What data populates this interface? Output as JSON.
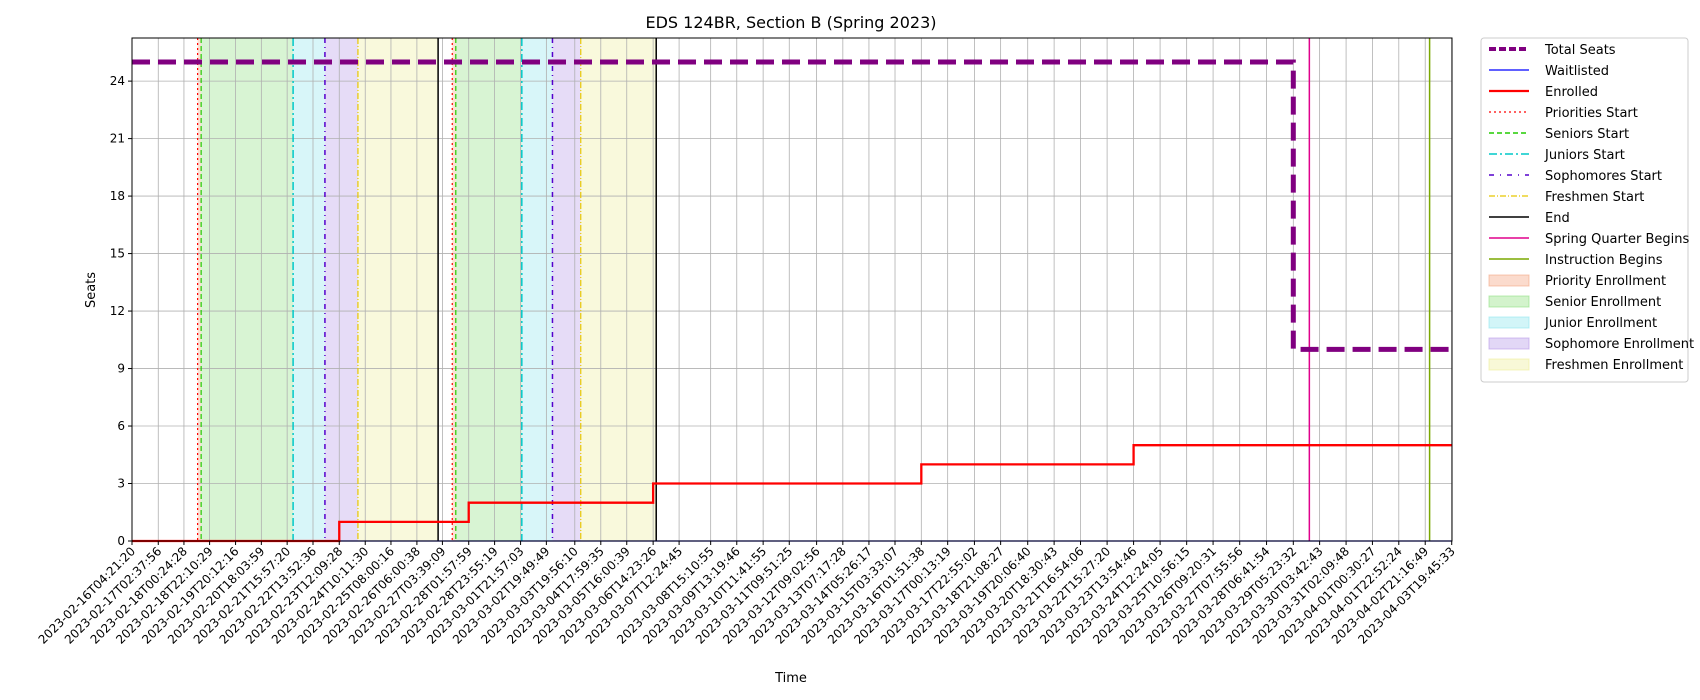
{
  "chart_data": {
    "type": "line",
    "title": "EDS 124BR, Section B (Spring 2023)",
    "xlabel": "Time",
    "ylabel": "Seats",
    "ylim": [
      0,
      26.25
    ],
    "yticks": [
      0,
      3,
      6,
      9,
      12,
      15,
      18,
      21,
      24
    ],
    "grid": true,
    "legend_position": "outside-right",
    "x_ticks": [
      "2023-02-16T04:21:20",
      "2023-02-17T02:37:56",
      "2023-02-18T00:24:28",
      "2023-02-18T22:10:29",
      "2023-02-19T20:12:16",
      "2023-02-20T18:03:59",
      "2023-02-21T15:57:20",
      "2023-02-22T13:52:36",
      "2023-02-23T12:09:28",
      "2023-02-24T10:11:30",
      "2023-02-25T08:00:16",
      "2023-02-26T06:00:38",
      "2023-02-27T03:39:09",
      "2023-02-28T01:57:59",
      "2023-02-28T23:55:19",
      "2023-03-01T21:57:03",
      "2023-03-02T19:49:49",
      "2023-03-03T19:56:10",
      "2023-03-04T17:59:35",
      "2023-03-05T16:00:39",
      "2023-03-06T14:23:26",
      "2023-03-07T12:24:45",
      "2023-03-08T15:10:55",
      "2023-03-09T13:19:46",
      "2023-03-10T11:41:55",
      "2023-03-11T09:51:25",
      "2023-03-12T09:02:56",
      "2023-03-13T07:17:28",
      "2023-03-14T05:26:17",
      "2023-03-15T03:33:07",
      "2023-03-16T01:51:38",
      "2023-03-17T00:13:19",
      "2023-03-17T22:55:02",
      "2023-03-18T21:08:27",
      "2023-03-19T20:06:40",
      "2023-03-20T18:30:43",
      "2023-03-21T16:54:06",
      "2023-03-22T15:27:20",
      "2023-03-23T13:54:46",
      "2023-03-24T12:24:05",
      "2023-03-25T10:56:15",
      "2023-03-26T09:20:31",
      "2023-03-27T07:55:56",
      "2023-03-28T06:41:54",
      "2023-03-29T05:23:32",
      "2023-03-30T03:42:43",
      "2023-03-31T02:09:48",
      "2023-04-01T00:30:27",
      "2023-04-01T22:52:24",
      "2023-04-02T21:16:49",
      "2023-04-03T19:45:33"
    ],
    "x_range": [
      "2023-02-16T04:21:20",
      "2023-04-03T20:00:00"
    ],
    "series": [
      {
        "name": "Total Seats",
        "color": "#800080",
        "style": "dashed-thick",
        "points": [
          [
            "2023-02-16T04:21:20",
            25
          ],
          [
            "2023-03-29T05:23:32",
            25
          ],
          [
            "2023-03-29T05:23:32",
            10
          ],
          [
            "2023-04-03T20:00:00",
            10
          ]
        ]
      },
      {
        "name": "Waitlisted",
        "color": "#0000ff",
        "style": "solid",
        "points": [
          [
            "2023-02-16T04:21:20",
            0
          ],
          [
            "2023-04-03T20:00:00",
            0
          ]
        ]
      },
      {
        "name": "Enrolled",
        "color": "#ff0000",
        "style": "solid-step",
        "points": [
          [
            "2023-02-16T04:21:20",
            0
          ],
          [
            "2023-02-23T12:09:28",
            1
          ],
          [
            "2023-02-28T01:57:59",
            2
          ],
          [
            "2023-03-06T14:23:26",
            3
          ],
          [
            "2023-03-16T01:51:38",
            4
          ],
          [
            "2023-03-23T13:54:46",
            5
          ],
          [
            "2023-04-03T20:00:00",
            5
          ]
        ]
      }
    ],
    "shaded_regions": [
      {
        "name": "Priority Enrollment",
        "color": "#f4a582",
        "ranges": [
          [
            "2023-02-18T12:00:00",
            "2023-02-18T15:00:00"
          ],
          [
            "2023-02-27T12:00:00",
            "2023-02-27T15:00:00"
          ]
        ]
      },
      {
        "name": "Senior Enrollment",
        "color": "#90e080",
        "ranges": [
          [
            "2023-02-18T15:00:00",
            "2023-02-21T21:00:00"
          ],
          [
            "2023-02-27T15:00:00",
            "2023-03-01T23:00:00"
          ]
        ]
      },
      {
        "name": "Junior Enrollment",
        "color": "#8ee6ee",
        "ranges": [
          [
            "2023-02-21T21:00:00",
            "2023-02-23T00:00:00"
          ],
          [
            "2023-03-01T23:00:00",
            "2023-03-03T01:00:00"
          ]
        ]
      },
      {
        "name": "Sophomore Enrollment",
        "color": "#b79ae8",
        "ranges": [
          [
            "2023-02-23T00:00:00",
            "2023-02-24T04:00:00"
          ],
          [
            "2023-03-03T01:00:00",
            "2023-03-04T01:00:00"
          ]
        ]
      },
      {
        "name": "Freshmen Enrollment",
        "color": "#eeee9a",
        "ranges": [
          [
            "2023-02-24T04:00:00",
            "2023-02-27T00:00:00"
          ],
          [
            "2023-03-04T01:00:00",
            "2023-03-06T17:00:00"
          ]
        ]
      }
    ],
    "vertical_lines": [
      {
        "name": "Priorities Start",
        "color": "#ff0000",
        "dash": "2,3",
        "width": 1.2,
        "dates": [
          "2023-02-18T12:00:00",
          "2023-02-27T12:00:00"
        ]
      },
      {
        "name": "Seniors Start",
        "color": "#22cc00",
        "dash": "5,3",
        "width": 1.2,
        "dates": [
          "2023-02-18T15:00:00",
          "2023-02-27T15:00:00"
        ]
      },
      {
        "name": "Juniors Start",
        "color": "#00c8c8",
        "dash": "8,3,2,3",
        "width": 1.5,
        "dates": [
          "2023-02-21T21:00:00",
          "2023-03-01T23:00:00"
        ]
      },
      {
        "name": "Sophomores Start",
        "color": "#5500cc",
        "dash": "5,4,1,4",
        "width": 1.5,
        "dates": [
          "2023-02-23T00:00:00",
          "2023-03-03T01:00:00"
        ]
      },
      {
        "name": "Freshmen Start",
        "color": "#e8c800",
        "dash": "6,2,1,2",
        "width": 1.2,
        "dates": [
          "2023-02-24T04:00:00",
          "2023-03-04T01:00:00"
        ]
      },
      {
        "name": "End",
        "color": "#000000",
        "dash": "",
        "width": 1.5,
        "dates": [
          "2023-02-27T00:00:00",
          "2023-03-06T17:00:00"
        ]
      },
      {
        "name": "Spring Quarter Begins",
        "color": "#e0008c",
        "dash": "",
        "width": 1.5,
        "dates": [
          "2023-03-29T19:00:00"
        ]
      },
      {
        "name": "Instruction Begins",
        "color": "#7aa800",
        "dash": "",
        "width": 1.5,
        "dates": [
          "2023-04-03T01:00:00"
        ]
      }
    ],
    "legend": [
      {
        "label": "Total Seats",
        "kind": "line",
        "color": "#800080",
        "dash": "7,3",
        "width": 4
      },
      {
        "label": "Waitlisted",
        "kind": "line",
        "color": "#0000ff",
        "dash": "",
        "width": 1.2
      },
      {
        "label": "Enrolled",
        "kind": "line",
        "color": "#ff0000",
        "dash": "",
        "width": 2.2
      },
      {
        "label": "Priorities Start",
        "kind": "line",
        "color": "#ff0000",
        "dash": "2,3",
        "width": 1.2
      },
      {
        "label": "Seniors Start",
        "kind": "line",
        "color": "#22cc00",
        "dash": "5,3",
        "width": 1.5
      },
      {
        "label": "Juniors Start",
        "kind": "line",
        "color": "#00c8c8",
        "dash": "8,3,2,3",
        "width": 1.5
      },
      {
        "label": "Sophomores Start",
        "kind": "line",
        "color": "#5500cc",
        "dash": "5,6,1,6",
        "width": 1.5
      },
      {
        "label": "Freshmen Start",
        "kind": "line",
        "color": "#e8c800",
        "dash": "6,2,1,2",
        "width": 1.2
      },
      {
        "label": "End",
        "kind": "line",
        "color": "#000000",
        "dash": "",
        "width": 1.5
      },
      {
        "label": "Spring Quarter Begins",
        "kind": "line",
        "color": "#e0008c",
        "dash": "",
        "width": 1.5
      },
      {
        "label": "Instruction Begins",
        "kind": "line",
        "color": "#7aa800",
        "dash": "",
        "width": 1.5
      },
      {
        "label": "Priority Enrollment",
        "kind": "patch",
        "color": "#f4a582"
      },
      {
        "label": "Senior Enrollment",
        "kind": "patch",
        "color": "#90e080"
      },
      {
        "label": "Junior Enrollment",
        "kind": "patch",
        "color": "#8ee6ee"
      },
      {
        "label": "Sophomore Enrollment",
        "kind": "patch",
        "color": "#b79ae8"
      },
      {
        "label": "Freshmen Enrollment",
        "kind": "patch",
        "color": "#eeee9a"
      }
    ]
  }
}
